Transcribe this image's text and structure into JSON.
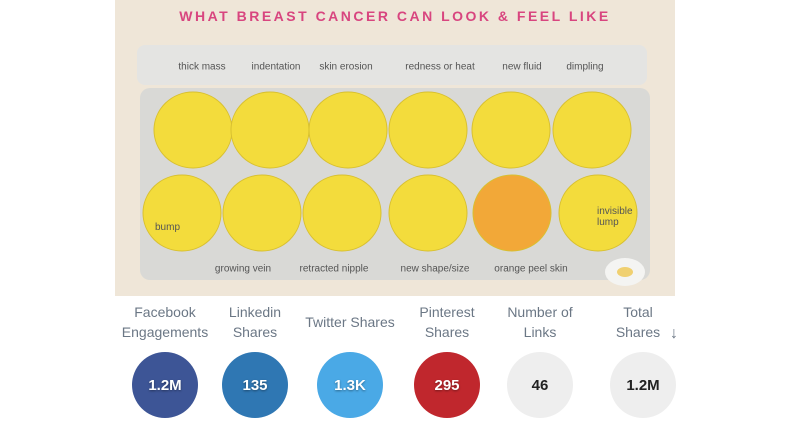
{
  "image": {
    "title": "WHAT BREAST CANCER CAN LOOK & FEEL LIKE",
    "top_labels": [
      "thick mass",
      "indentation",
      "skin erosion",
      "redness or heat",
      "new fluid",
      "dimpling"
    ],
    "bottom_labels": [
      "growing vein",
      "retracted nipple",
      "new shape/size",
      "orange peel skin"
    ],
    "bump_label": "bump",
    "invisible_lump_label": "invisible lump"
  },
  "metrics": [
    {
      "label": "Facebook Engagements",
      "value": "1.2M"
    },
    {
      "label": "Linkedin Shares",
      "value": 135
    },
    {
      "label": "Twitter Shares",
      "value": "1.3K"
    },
    {
      "label": "Pinterest Shares",
      "value": 295
    },
    {
      "label": "Number of Links",
      "value": 46
    },
    {
      "label": "Total Shares",
      "value": "1.2M"
    }
  ]
}
